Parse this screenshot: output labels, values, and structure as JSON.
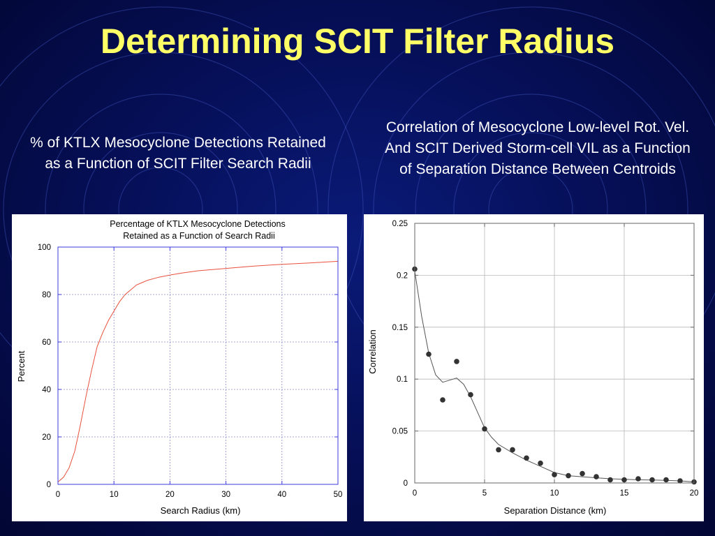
{
  "slide": {
    "title": "Determining SCIT Filter Radius",
    "left_caption": "% of KTLX Mesocyclone Detections Retained as a Function of SCIT Filter Search Radii",
    "right_caption": "Correlation of Mesocyclone Low-level Rot. Vel. And SCIT Derived Storm-cell VIL as a Function of Separation Distance Between Centroids"
  },
  "colors": {
    "title": "#ffff66",
    "background": "#06105a",
    "left_line": "#e8503c",
    "right_line": "#555555",
    "right_points": "#333333"
  },
  "chart_data": [
    {
      "type": "line",
      "title": "Percentage of KTLX Mesocyclone Detections Retained as a Function of Search Radii",
      "title_lines": [
        "Percentage of KTLX Mesocyclone Detections",
        "Retained as a Function of Search Radii"
      ],
      "xlabel": "Search Radius (km)",
      "ylabel": "Percent",
      "xlim": [
        0,
        50
      ],
      "ylim": [
        0,
        100
      ],
      "xticks": [
        0,
        10,
        20,
        30,
        40,
        50
      ],
      "yticks": [
        0,
        20,
        40,
        60,
        80,
        100
      ],
      "grid": true,
      "series": [
        {
          "x": [
            0,
            1,
            2,
            3,
            4,
            5,
            6,
            7,
            8,
            9,
            10,
            11,
            12,
            13,
            14,
            15,
            16,
            18,
            20,
            22,
            25,
            30,
            35,
            40,
            45,
            50
          ],
          "y": [
            1,
            3,
            7,
            14,
            25,
            37,
            48,
            58,
            64,
            69,
            73,
            77,
            80,
            82,
            84,
            85,
            86,
            87.3,
            88.2,
            89,
            90,
            91,
            92,
            92.7,
            93.3,
            94
          ]
        }
      ]
    },
    {
      "type": "scatter",
      "title": "",
      "xlabel": "Separation Distance (km)",
      "ylabel": "Correlation",
      "xlim": [
        0,
        20
      ],
      "ylim": [
        0,
        0.25
      ],
      "xticks": [
        0,
        5,
        10,
        15,
        20
      ],
      "yticks": [
        0,
        0.05,
        0.1,
        0.15,
        0.2,
        0.25
      ],
      "grid": true,
      "points": {
        "x": [
          0,
          1,
          2,
          3,
          4,
          5,
          6,
          7,
          8,
          9,
          10,
          11,
          12,
          13,
          14,
          15,
          16,
          17,
          18,
          19,
          20
        ],
        "y": [
          0.206,
          0.124,
          0.08,
          0.117,
          0.085,
          0.052,
          0.032,
          0.032,
          0.024,
          0.019,
          0.008,
          0.007,
          0.009,
          0.006,
          0.003,
          0.003,
          0.004,
          0.003,
          0.003,
          0.002,
          0.001
        ]
      },
      "fit_line": {
        "x": [
          0,
          0.5,
          1,
          1.5,
          2,
          2.5,
          3,
          3.5,
          4,
          4.5,
          5,
          5.5,
          6,
          7,
          8,
          9,
          10,
          11,
          12,
          13,
          14,
          15,
          16,
          17,
          18,
          19,
          20
        ],
        "y": [
          0.204,
          0.16,
          0.125,
          0.104,
          0.097,
          0.099,
          0.101,
          0.095,
          0.083,
          0.068,
          0.053,
          0.044,
          0.037,
          0.029,
          0.022,
          0.016,
          0.01,
          0.007,
          0.006,
          0.005,
          0.004,
          0.0035,
          0.003,
          0.0028,
          0.0025,
          0.002,
          0.001
        ]
      }
    }
  ]
}
